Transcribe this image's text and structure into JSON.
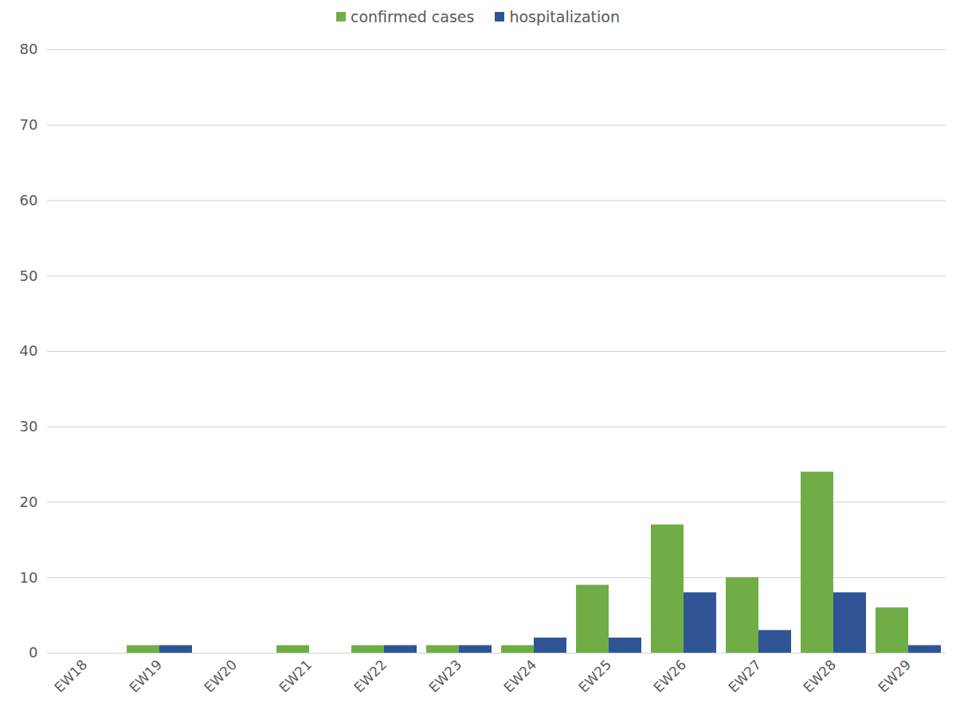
{
  "chart_data": {
    "type": "bar",
    "categories": [
      "EW18",
      "EW19",
      "EW20",
      "EW21",
      "EW22",
      "EW23",
      "EW24",
      "EW25",
      "EW26",
      "EW27",
      "EW28",
      "EW29"
    ],
    "series": [
      {
        "name": "confirmed cases",
        "color": "#70ad47",
        "values": [
          0,
          1,
          0,
          1,
          1,
          1,
          1,
          9,
          17,
          10,
          24,
          6
        ]
      },
      {
        "name": "hospitalization",
        "color": "#2f5597",
        "values": [
          0,
          1,
          0,
          0,
          1,
          1,
          2,
          2,
          8,
          3,
          8,
          1
        ]
      }
    ],
    "ylim": [
      0,
      80
    ],
    "yticks": [
      0,
      10,
      20,
      30,
      40,
      50,
      60,
      70,
      80
    ],
    "grid": true,
    "legend": "top"
  }
}
